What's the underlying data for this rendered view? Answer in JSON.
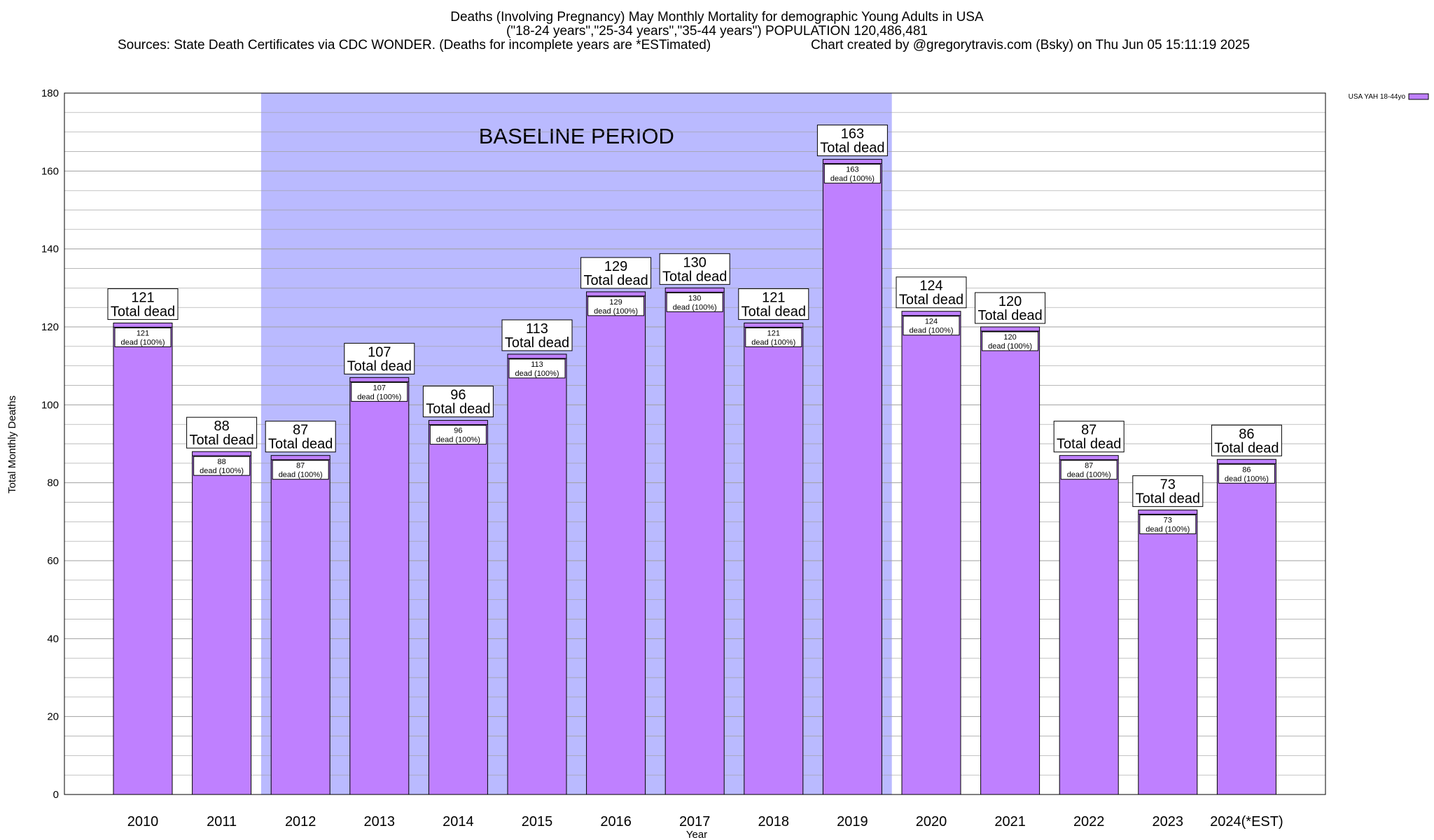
{
  "title": {
    "line1": "Deaths (Involving Pregnancy) May Monthly Mortality for demographic Young Adults in USA",
    "line2": "(\"18-24 years\",\"25-34 years\",\"35-44 years\") POPULATION 120,486,481",
    "line3_left": "Sources: State Death Certificates via CDC WONDER. (Deaths for incomplete years are *ESTimated)",
    "line3_right": "Chart created by @gregorytravis.com (Bsky) on Thu Jun 05 15:11:19 2025"
  },
  "chart_data": {
    "type": "bar",
    "categories": [
      "2010",
      "2011",
      "2012",
      "2013",
      "2014",
      "2015",
      "2016",
      "2017",
      "2018",
      "2019",
      "2020",
      "2021",
      "2022",
      "2023",
      "2024(*EST)"
    ],
    "series": [
      {
        "name": "USA YAH 18-44yo",
        "values": [
          121,
          88,
          87,
          107,
          96,
          113,
          129,
          130,
          121,
          163,
          124,
          120,
          87,
          73,
          86
        ]
      }
    ],
    "xlabel": "Year",
    "ylabel": "Total Monthly Deaths",
    "ylim": [
      0,
      180
    ],
    "yticks": [
      0,
      20,
      40,
      60,
      80,
      100,
      120,
      140,
      160,
      180
    ],
    "grid": "horizontal",
    "legend_position": "top-right",
    "bar_label_suffix": "Total dead",
    "inner_label_suffix": "dead (100%)",
    "baseline_period": {
      "label": "BASELINE PERIOD",
      "start": "2012",
      "end": "2019"
    },
    "colors": {
      "bar": "#bf80ff",
      "baseline": "#babaff",
      "grid": "#a0a0a0"
    }
  }
}
